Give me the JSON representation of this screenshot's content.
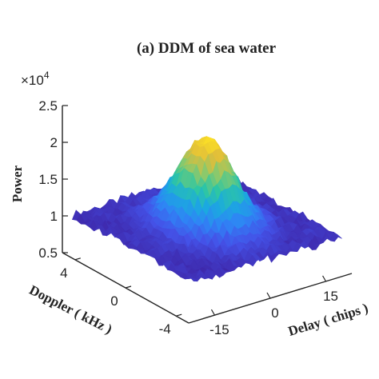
{
  "chart_data": {
    "type": "surface",
    "title": "(a) DDM of sea water",
    "z_multiplier_label": "×10",
    "z_multiplier_exponent": "4",
    "zlabel": "Power",
    "xlabel": "Delay ( chips )",
    "ylabel": "Doppler ( kHz )",
    "z_ticks": [
      "0.5",
      "1",
      "1.5",
      "2",
      "2.5"
    ],
    "z_tick_values": [
      0.5,
      1,
      1.5,
      2,
      2.5
    ],
    "x_ticks": [
      "-15",
      "0",
      "15"
    ],
    "x_tick_values": [
      -15,
      0,
      15
    ],
    "y_ticks": [
      "4",
      "0",
      "-4"
    ],
    "y_tick_values": [
      4,
      0,
      -4
    ],
    "xlim": [
      -22,
      22
    ],
    "ylim": [
      -5,
      5
    ],
    "zlim": [
      0.5,
      2.5
    ],
    "colormap": [
      "#3e26a8",
      "#4452e8",
      "#2f84f5",
      "#1ba9e0",
      "#2ec6a3",
      "#8cc96b",
      "#e0bd3a",
      "#fde125"
    ],
    "surface": {
      "floor": 1.0,
      "noise": 0.06,
      "peak": {
        "delay": 0,
        "doppler": 0,
        "height": 2.2
      },
      "delay_width": 5.5,
      "doppler_width": 1.6
    }
  }
}
